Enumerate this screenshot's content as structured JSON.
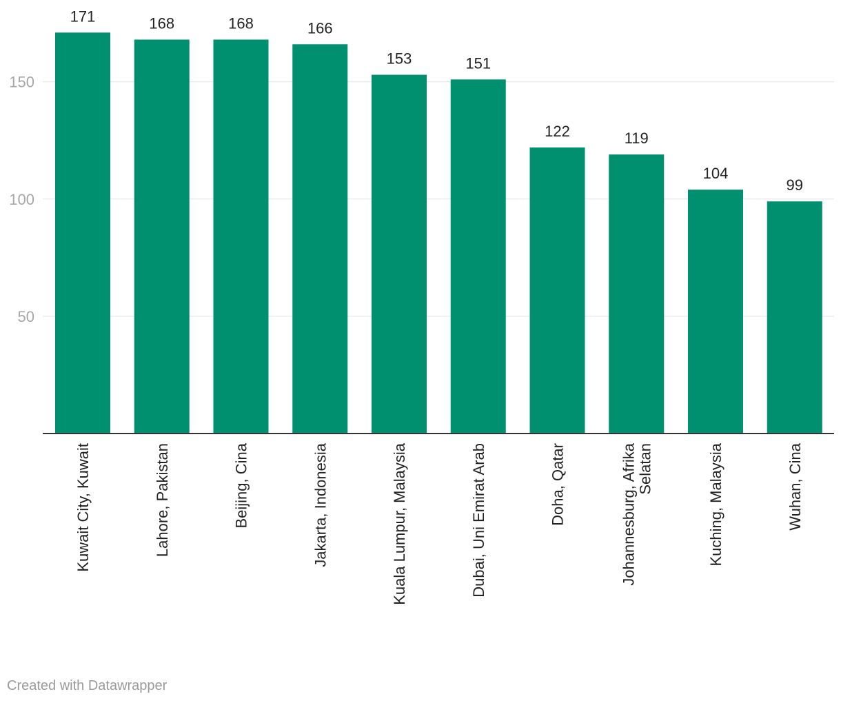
{
  "chart_data": {
    "type": "bar",
    "categories": [
      "Kuwait City, Kuwait",
      "Lahore, Pakistan",
      "Beijing, Cina",
      "Jakarta, Indonesia",
      "Kuala Lumpur, Malaysia",
      "Dubai, Uni Emirat Arab",
      "Doha, Qatar",
      "Johannesburg, Afrika Selatan",
      "Kuching, Malaysia",
      "Wuhan, Cina"
    ],
    "values": [
      171,
      168,
      168,
      166,
      153,
      151,
      122,
      119,
      104,
      99
    ],
    "data_labels": [
      "171",
      "168",
      "168",
      "166",
      "153",
      "151",
      "122",
      "119",
      "104",
      "99"
    ],
    "title": "",
    "xlabel": "",
    "ylabel": "",
    "ylim": [
      0,
      180
    ],
    "yticks": [
      50,
      100,
      150
    ],
    "ytick_labels": [
      "50",
      "100",
      "150"
    ],
    "grid": true,
    "bar_color": "#00906f"
  },
  "footer": {
    "credit": "Created with Datawrapper"
  }
}
